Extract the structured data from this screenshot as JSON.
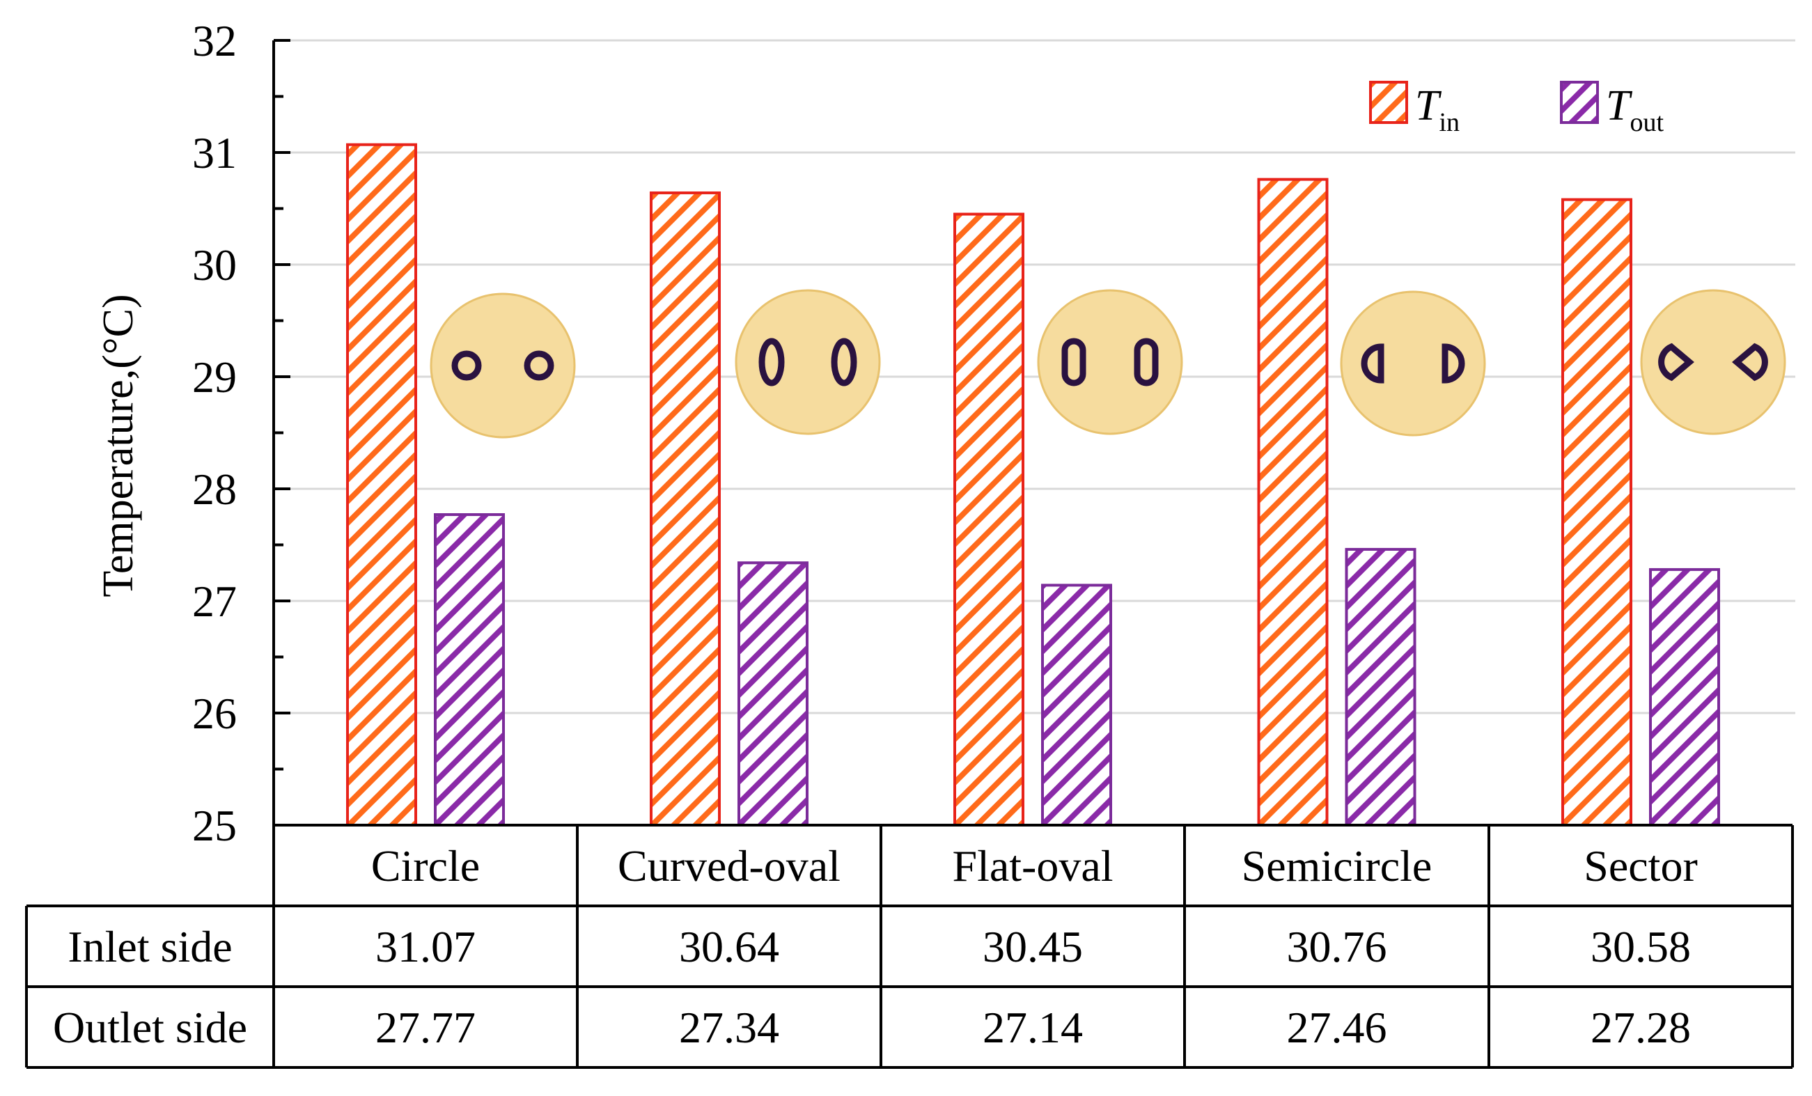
{
  "chart_data": {
    "type": "bar",
    "ylabel": "Temperature,(°C)",
    "ylim": [
      25,
      32
    ],
    "yticks": [
      "25",
      "26",
      "27",
      "28",
      "29",
      "30",
      "31",
      "32"
    ],
    "grid": true,
    "legend_position": "top-right",
    "categories": [
      "Circle",
      "Curved-oval",
      "Flat-oval",
      "Semicircle",
      "Sector"
    ],
    "series": [
      {
        "name": "T",
        "subscript": "in",
        "values": [
          31.07,
          30.64,
          30.45,
          30.76,
          30.58
        ],
        "color": "#ff6a1a",
        "edge": "#e8231a"
      },
      {
        "name": "T",
        "subscript": "out",
        "values": [
          27.77,
          27.34,
          27.14,
          27.46,
          27.28
        ],
        "color": "#8a2aa8",
        "edge": "#7b2b9a"
      }
    ],
    "table": {
      "rows": [
        {
          "label": "Inlet side",
          "values": [
            "31.07",
            "30.64",
            "30.45",
            "30.76",
            "30.58"
          ]
        },
        {
          "label": "Outlet side",
          "values": [
            "27.77",
            "27.34",
            "27.14",
            "27.46",
            "27.28"
          ]
        }
      ]
    },
    "insets": [
      "circle-holes",
      "curved-oval-holes",
      "flat-oval-holes",
      "semicircle-holes",
      "sector-holes"
    ]
  },
  "colors": {
    "inset_fill": "#f6dc9e",
    "inset_stroke": "#e8c26e",
    "hole_stroke": "#2a1240",
    "grid": "#d9d9d9"
  }
}
